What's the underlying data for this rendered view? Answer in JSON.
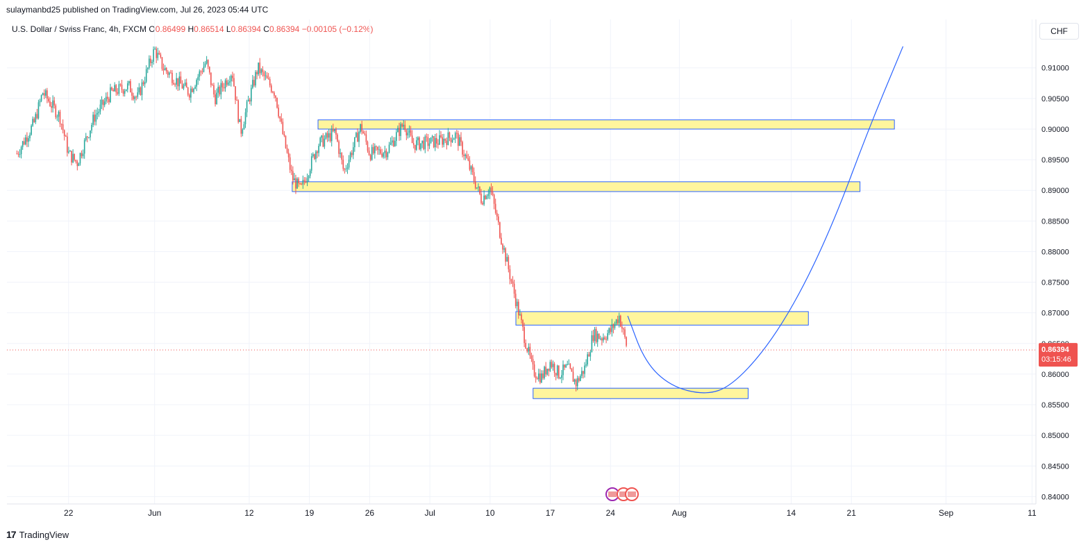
{
  "header": {
    "published": "sulaymanbd25 published on TradingView.com, Jul 26, 2023 05:44 UTC"
  },
  "legend": {
    "symbol": "U.S. Dollar / Swiss Franc, 4h, FXCM",
    "open_label": "O",
    "open": "0.86499",
    "high_label": "H",
    "high": "0.86514",
    "low_label": "L",
    "low": "0.86394",
    "close_label": "C",
    "close": "0.86394",
    "change": "−0.00105 (−0.12%)"
  },
  "currency_button": "CHF",
  "colors": {
    "up": "#26a69a",
    "down": "#ef5350",
    "zone_fill": "#fff59d",
    "zone_stroke": "#2962ff",
    "curve": "#2962ff",
    "grid": "#f0f3fa",
    "price_label_bg": "#ef5350"
  },
  "footer": {
    "brand": "TradingView",
    "logo_icon": "tradingview-logo-icon"
  },
  "event_icons": [
    "us-flag-icon",
    "us-flag-icon",
    "us-flag-icon"
  ],
  "chart_data": {
    "type": "candlestick",
    "symbol": "USDCHF",
    "timeframe": "4h",
    "y_ticks": [
      "0.91000",
      "0.90500",
      "0.90000",
      "0.89500",
      "0.89000",
      "0.88500",
      "0.88000",
      "0.87500",
      "0.87000",
      "0.86500",
      "0.86000",
      "0.85500",
      "0.85000",
      "0.84500",
      "0.84000"
    ],
    "x_ticks": [
      {
        "label": "22",
        "date": "2023-05-22"
      },
      {
        "label": "Jun",
        "date": "2023-06-01"
      },
      {
        "label": "12",
        "date": "2023-06-12"
      },
      {
        "label": "19",
        "date": "2023-06-19"
      },
      {
        "label": "26",
        "date": "2023-06-26"
      },
      {
        "label": "Jul",
        "date": "2023-07-03"
      },
      {
        "label": "10",
        "date": "2023-07-10"
      },
      {
        "label": "17",
        "date": "2023-07-17"
      },
      {
        "label": "24",
        "date": "2023-07-24"
      },
      {
        "label": "Aug",
        "date": "2023-08-01"
      },
      {
        "label": "14",
        "date": "2023-08-14"
      },
      {
        "label": "21",
        "date": "2023-08-21"
      },
      {
        "label": "Sep",
        "date": "2023-09-01"
      },
      {
        "label": "11",
        "date": "2023-09-11"
      }
    ],
    "ylim": [
      0.8388,
      0.9145
    ],
    "current_price": {
      "value": "0.86394",
      "countdown": "03:15:46"
    },
    "price_path": [
      [
        "2023-05-16",
        0.896
      ],
      [
        "2023-05-18",
        0.901
      ],
      [
        "2023-05-19",
        0.906
      ],
      [
        "2023-05-21",
        0.902
      ],
      [
        "2023-05-22",
        0.896
      ],
      [
        "2023-05-23",
        0.8945
      ],
      [
        "2023-05-25",
        0.902
      ],
      [
        "2023-05-27",
        0.906
      ],
      [
        "2023-05-29",
        0.907
      ],
      [
        "2023-05-30",
        0.905
      ],
      [
        "2023-06-01",
        0.913
      ],
      [
        "2023-06-02",
        0.91
      ],
      [
        "2023-06-05",
        0.906
      ],
      [
        "2023-06-07",
        0.911
      ],
      [
        "2023-06-08",
        0.905
      ],
      [
        "2023-06-10",
        0.9095
      ],
      [
        "2023-06-11",
        0.8995
      ],
      [
        "2023-06-12",
        0.905
      ],
      [
        "2023-06-13",
        0.91
      ],
      [
        "2023-06-15",
        0.906
      ],
      [
        "2023-06-16",
        0.8985
      ],
      [
        "2023-06-17",
        0.892
      ],
      [
        "2023-06-18",
        0.89
      ],
      [
        "2023-06-20",
        0.8975
      ],
      [
        "2023-06-22",
        0.8995
      ],
      [
        "2023-06-23",
        0.893
      ],
      [
        "2023-06-25",
        0.9005
      ],
      [
        "2023-06-26",
        0.896
      ],
      [
        "2023-06-28",
        0.8965
      ],
      [
        "2023-06-30",
        0.901
      ],
      [
        "2023-07-01",
        0.8975
      ],
      [
        "2023-07-04",
        0.898
      ],
      [
        "2023-07-06",
        0.899
      ],
      [
        "2023-07-07",
        0.896
      ],
      [
        "2023-07-09",
        0.8885
      ],
      [
        "2023-07-10",
        0.8905
      ],
      [
        "2023-07-11",
        0.884
      ],
      [
        "2023-07-12",
        0.878
      ],
      [
        "2023-07-13",
        0.872
      ],
      [
        "2023-07-14",
        0.866
      ],
      [
        "2023-07-15",
        0.8605
      ],
      [
        "2023-07-16",
        0.8595
      ],
      [
        "2023-07-17",
        0.862
      ],
      [
        "2023-07-18",
        0.86
      ],
      [
        "2023-07-19",
        0.861
      ],
      [
        "2023-07-20",
        0.8585
      ],
      [
        "2023-07-21",
        0.861
      ],
      [
        "2023-07-22",
        0.8665
      ],
      [
        "2023-07-23",
        0.866
      ],
      [
        "2023-07-24",
        0.867
      ],
      [
        "2023-07-25",
        0.8695
      ],
      [
        "2023-07-26",
        0.8639
      ]
    ],
    "zones": [
      {
        "from": "2023-06-20",
        "to": "2023-08-26",
        "high": 0.9015,
        "low": 0.9
      },
      {
        "from": "2023-06-17",
        "to": "2023-08-22",
        "high": 0.8914,
        "low": 0.8898
      },
      {
        "from": "2023-07-13",
        "to": "2023-08-16",
        "high": 0.8702,
        "low": 0.868
      },
      {
        "from": "2023-07-15",
        "to": "2023-08-09",
        "high": 0.8577,
        "low": 0.856
      }
    ],
    "projection_curve": [
      [
        "2023-07-26",
        0.8695
      ],
      [
        "2023-07-28",
        0.862
      ],
      [
        "2023-07-31",
        0.858
      ],
      [
        "2023-08-04",
        0.8566
      ],
      [
        "2023-08-07",
        0.858
      ],
      [
        "2023-08-11",
        0.864
      ],
      [
        "2023-08-15",
        0.873
      ],
      [
        "2023-08-19",
        0.885
      ],
      [
        "2023-08-23",
        0.9
      ],
      [
        "2023-08-27",
        0.9135
      ]
    ]
  }
}
